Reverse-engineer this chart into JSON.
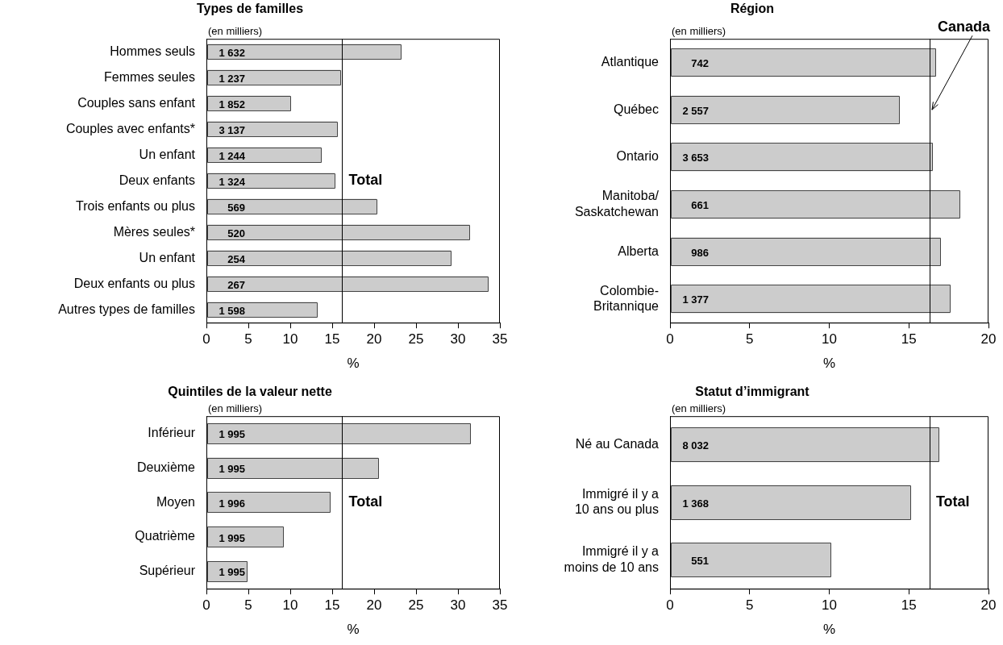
{
  "chart_data": [
    {
      "type": "bar",
      "orientation": "horizontal",
      "title": "Types de familles",
      "xlabel": "%",
      "annotations": [
        "(en milliers)",
        "1 632",
        "1 237",
        "1 852",
        "3 137",
        "1 244",
        "1 324",
        "569",
        "520",
        "254",
        "267",
        "1 598"
      ],
      "categories": [
        "Hommes seuls",
        "Femmes seules",
        "Couples sans enfant",
        "Couples avec enfants*",
        "Un enfant",
        "Deux enfants",
        "Trois enfants ou plus",
        "Mères seules*",
        "Un enfant",
        "Deux enfants ou plus",
        "Autres types de familles"
      ],
      "values": [
        23.2,
        16.0,
        10.0,
        15.6,
        13.7,
        15.3,
        20.3,
        31.4,
        29.2,
        33.6,
        13.2
      ],
      "color": "#cccccc",
      "xlim": [
        0,
        35
      ],
      "xticks": [
        0,
        5,
        10,
        15,
        20,
        25,
        30,
        35
      ],
      "grid": false,
      "legend": false,
      "ref_lines": [
        {
          "axis": "x",
          "value": 16.2,
          "label": "Total",
          "color": "#000000"
        }
      ]
    },
    {
      "type": "bar",
      "orientation": "horizontal",
      "title": "Région",
      "xlabel": "%",
      "annotations": [
        "(en milliers)",
        "742",
        "2 557",
        "3 653",
        "661",
        "986",
        "1 377",
        {
          "text": "Canada",
          "x": 16.3,
          "y": "Québec"
        }
      ],
      "categories": [
        "Atlantique",
        "Québec",
        "Ontario",
        "Manitoba/\nSaskatchewan",
        "Alberta",
        "Colombie-\nBritannique"
      ],
      "values": [
        16.7,
        14.4,
        16.5,
        18.2,
        17.0,
        17.6
      ],
      "color": "#cccccc",
      "xlim": [
        0,
        20
      ],
      "xticks": [
        0,
        5,
        10,
        15,
        20
      ],
      "grid": false,
      "legend": false,
      "ref_lines": [
        {
          "axis": "x",
          "value": 16.3,
          "color": "#000000"
        }
      ]
    },
    {
      "type": "bar",
      "orientation": "horizontal",
      "title": "Quintiles de la valeur nette",
      "xlabel": "%",
      "annotations": [
        "(en milliers)",
        "1 995",
        "1 995",
        "1 996",
        "1 995",
        "1 995"
      ],
      "categories": [
        "Inférieur",
        "Deuxième",
        "Moyen",
        "Quatrième",
        "Supérieur"
      ],
      "values": [
        31.5,
        20.5,
        14.8,
        9.2,
        4.9
      ],
      "color": "#cccccc",
      "xlim": [
        0,
        35
      ],
      "xticks": [
        0,
        5,
        10,
        15,
        20,
        25,
        30,
        35
      ],
      "grid": false,
      "legend": false,
      "ref_lines": [
        {
          "axis": "x",
          "value": 16.2,
          "label": "Total",
          "color": "#000000"
        }
      ]
    },
    {
      "type": "bar",
      "orientation": "horizontal",
      "title": "Statut d’immigrant",
      "xlabel": "%",
      "annotations": [
        "(en milliers)",
        "8 032",
        "1 368",
        "551"
      ],
      "categories": [
        "Né au Canada",
        "Immigré il y a\n10 ans ou plus",
        "Immigré il y a\nmoins de 10 ans"
      ],
      "values": [
        16.9,
        15.1,
        10.1
      ],
      "color": "#cccccc",
      "xlim": [
        0,
        20
      ],
      "xticks": [
        0,
        5,
        10,
        15,
        20
      ],
      "grid": false,
      "legend": false,
      "ref_lines": [
        {
          "axis": "x",
          "value": 16.3,
          "label": "Total",
          "color": "#000000"
        }
      ]
    }
  ]
}
